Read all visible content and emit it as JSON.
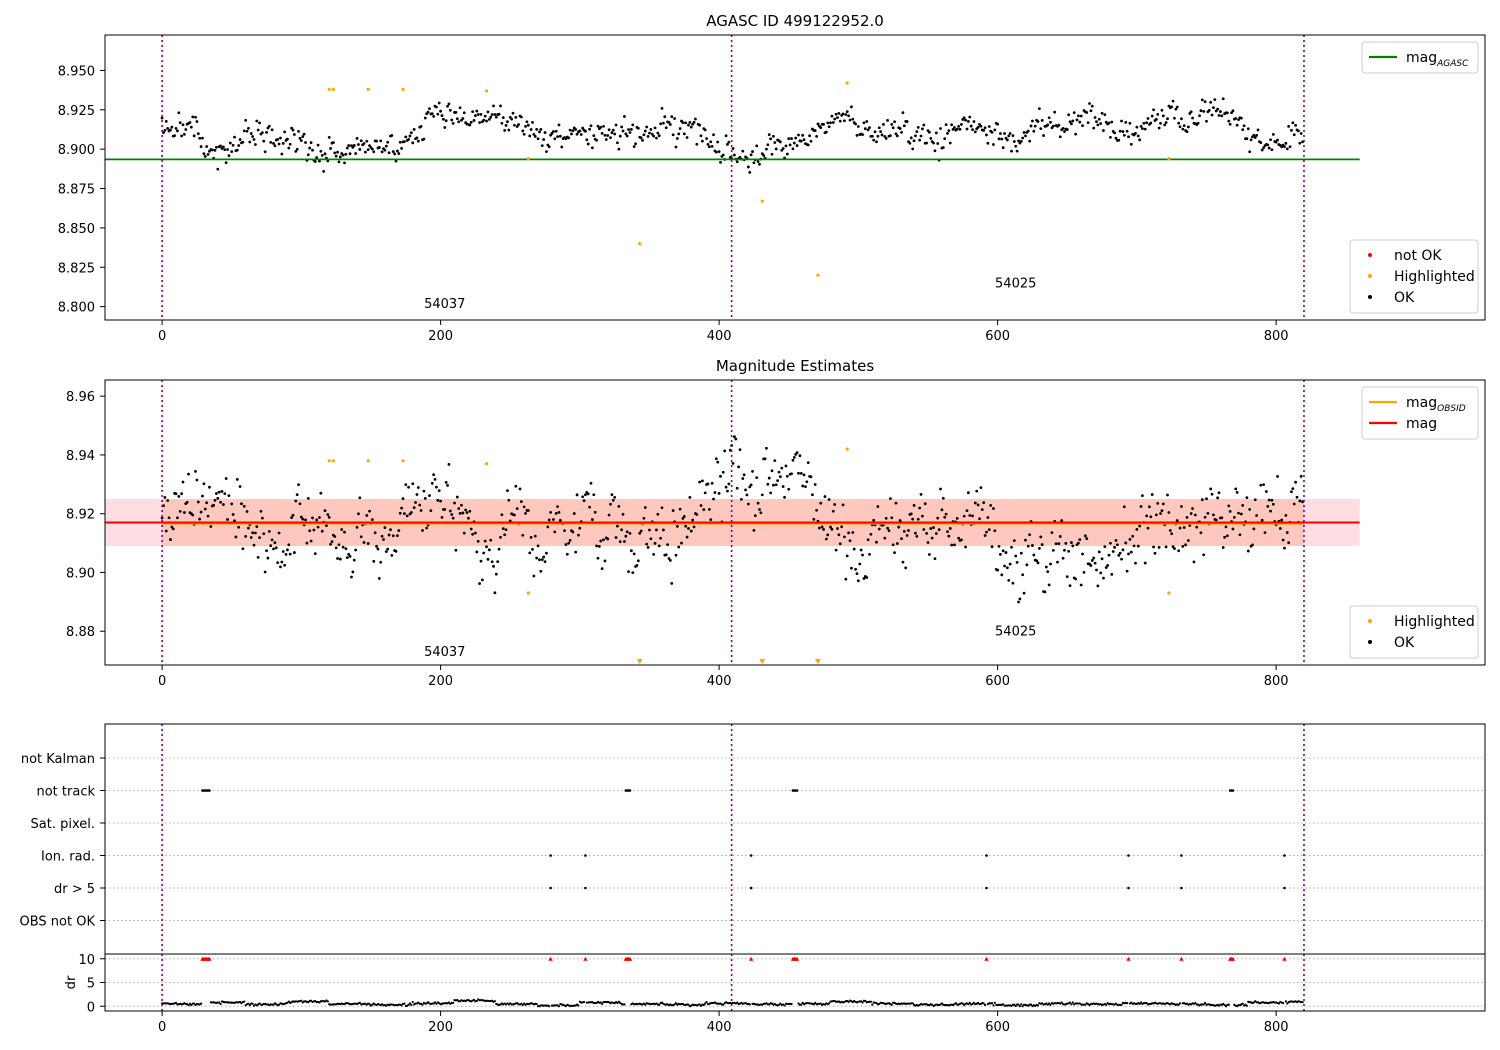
{
  "chart_data": [
    {
      "type": "scatter",
      "title": "AGASC ID 499122952.0",
      "xlabel": "",
      "ylabel": "",
      "xlim": [
        -41,
        950
      ],
      "ylim": [
        8.7915,
        8.9725
      ],
      "x_ticks": [
        "0",
        "200",
        "400",
        "600",
        "800"
      ],
      "y_ticks": [
        "8.800",
        "8.825",
        "8.850",
        "8.875",
        "8.900",
        "8.925",
        "8.950"
      ],
      "ok_color": "#000000",
      "highlight_color": "#ffa500",
      "not_ok_color": "#ff0000",
      "obs_boundaries": [
        0,
        409,
        820
      ],
      "boundary_color": "#800080",
      "obs_labels": [
        {
          "text": "54037",
          "x": 203,
          "y": 8.799
        },
        {
          "text": "54025",
          "x": 613,
          "y": 8.812
        }
      ],
      "hlines": [
        {
          "name": "mag_AGASC",
          "y": 8.8935,
          "x0": -41,
          "x1": 860,
          "color": "#008000"
        }
      ],
      "series": [
        {
          "name": "not OK",
          "color": "#ff0000",
          "points": []
        },
        {
          "name": "Highlighted",
          "color": "#ffa500",
          "points": [
            [
              120,
              8.938
            ],
            [
              123,
              8.938
            ],
            [
              148,
              8.938
            ],
            [
              173,
              8.938
            ],
            [
              233,
              8.937
            ],
            [
              263,
              8.894
            ],
            [
              343,
              8.84
            ],
            [
              431,
              8.867
            ],
            [
              471,
              8.82
            ],
            [
              492,
              8.942
            ],
            [
              723,
              8.894
            ]
          ]
        },
        {
          "name": "OK",
          "color": "#000000",
          "generated": true,
          "n": 820,
          "level": 8.915,
          "noise": 0.007
        }
      ],
      "legend": [
        {
          "position": "top-right",
          "entries": [
            {
              "name": "mag",
              "sub": "AGASC",
              "kind": "line",
              "color": "#008000"
            }
          ]
        },
        {
          "position": "bottom-right",
          "entries": [
            {
              "name": "not OK",
              "kind": "dot",
              "color": "#ff0000"
            },
            {
              "name": "Highlighted",
              "kind": "dot",
              "color": "#ffa500"
            },
            {
              "name": "OK",
              "kind": "dot",
              "color": "#000000"
            }
          ]
        }
      ]
    },
    {
      "type": "scatter",
      "title": "Magnitude Estimates",
      "xlabel": "",
      "ylabel": "",
      "xlim": [
        -41,
        950
      ],
      "ylim": [
        8.8685,
        8.9655
      ],
      "x_ticks": [
        "0",
        "200",
        "400",
        "600",
        "800"
      ],
      "y_ticks": [
        "8.88",
        "8.90",
        "8.92",
        "8.94",
        "8.96"
      ],
      "obs_boundaries": [
        0,
        409,
        820
      ],
      "boundary_color": "#800080",
      "obs_labels": [
        {
          "text": "54037",
          "x": 203,
          "y": 8.8715
        },
        {
          "text": "54025",
          "x": 613,
          "y": 8.8785
        }
      ],
      "bands": [
        {
          "y0": 8.909,
          "y1": 8.925,
          "x0": -41,
          "x1": 860,
          "color": "#ffb6c1",
          "opacity": 0.45
        },
        {
          "y0": 8.909,
          "y1": 8.925,
          "x0": 0,
          "x1": 820,
          "color": "#ffa07a",
          "opacity": 0.35
        }
      ],
      "hlines": [
        {
          "name": "mag_OBSID",
          "y": 8.9168,
          "x0": 0,
          "x1": 820,
          "color": "#ffa500",
          "width": 3
        },
        {
          "name": "mag",
          "y": 8.917,
          "x0": -41,
          "x1": 860,
          "color": "#ff0000",
          "width": 2
        }
      ],
      "series": [
        {
          "name": "Highlighted",
          "color": "#ffa500",
          "points": [
            [
              120,
              8.938
            ],
            [
              123,
              8.938
            ],
            [
              148,
              8.938
            ],
            [
              173,
              8.938
            ],
            [
              233,
              8.937
            ],
            [
              263,
              8.893
            ],
            [
              723,
              8.893
            ],
            [
              492,
              8.942
            ]
          ]
        },
        {
          "name": "Highlighted (below range)",
          "color": "#ffa500",
          "marker": "triangle-down",
          "points": [
            [
              343,
              8.8695
            ],
            [
              431,
              8.8695
            ],
            [
              471,
              8.8695
            ]
          ]
        },
        {
          "name": "OK",
          "color": "#000000",
          "generated": true,
          "n": 820,
          "level": 8.915,
          "noise": 0.009
        }
      ],
      "legend": [
        {
          "position": "top-right",
          "entries": [
            {
              "name": "mag",
              "sub": "OBSID",
              "kind": "line",
              "color": "#ffa500"
            },
            {
              "name": "mag",
              "kind": "line",
              "color": "#ff0000"
            }
          ]
        },
        {
          "position": "bottom-right",
          "entries": [
            {
              "name": "Highlighted",
              "kind": "dot",
              "color": "#ffa500"
            },
            {
              "name": "OK",
              "kind": "dot",
              "color": "#000000"
            }
          ]
        }
      ]
    },
    {
      "type": "scatter",
      "title": "",
      "xlim": [
        -41,
        950
      ],
      "x_ticks": [
        "0",
        "200",
        "400",
        "600",
        "800"
      ],
      "obs_boundaries": [
        0,
        409,
        820
      ],
      "boundary_color": "#800080",
      "flag_rows": [
        "not Kalman",
        "not track",
        "Sat. pixel.",
        "Ion. rad.",
        "dr > 5",
        "OBS not OK"
      ],
      "flags": {
        "not track": [
          29,
          30,
          31,
          32,
          33,
          34,
          333,
          334,
          335,
          336,
          453,
          454,
          455,
          456,
          767,
          768,
          769
        ],
        "Ion. rad.": [
          279,
          304,
          423,
          592,
          694,
          732,
          806
        ],
        "dr > 5": [
          279,
          304,
          423,
          592,
          694,
          732,
          806
        ]
      },
      "dr": {
        "ylabel": "dr",
        "ylim": [
          -1,
          11
        ],
        "y_ticks": [
          "0",
          "5",
          "10"
        ],
        "clip_value": 10,
        "clipped_x": [
          29,
          30,
          31,
          32,
          33,
          34,
          279,
          304,
          333,
          334,
          335,
          336,
          423,
          453,
          454,
          455,
          456,
          592,
          694,
          732,
          767,
          768,
          769,
          806
        ],
        "clipped_color": "#ff0000",
        "segment_levels": [
          0.5,
          0.8,
          0.4,
          1.0,
          0.5,
          0.3,
          0.6,
          1.2,
          0.5,
          0.2,
          0.8,
          0.5,
          0.3,
          0.6,
          0.4,
          0.5,
          1.0,
          0.6,
          0.3,
          0.5,
          0.2,
          0.5,
          0.4,
          0.6,
          0.5,
          0.3,
          0.8,
          1.0
        ]
      }
    }
  ]
}
